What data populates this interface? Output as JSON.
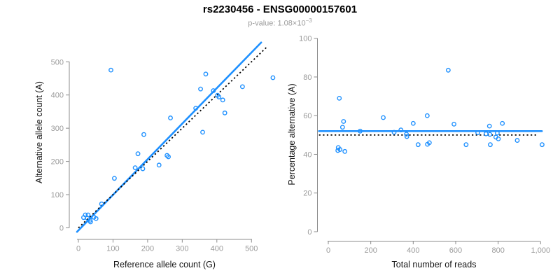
{
  "figure": {
    "title": "rs2230456 - ENSG00000157601",
    "subtitle_base": "p-value: 1.08×10",
    "subtitle_exponent": "−3",
    "colors": {
      "accent_blue": "#1e90ff",
      "dotted_black": "#000000",
      "axis_gray": "#8c8c8c",
      "tick_label_gray": "#9a9a9a",
      "text_black": "#141414"
    }
  },
  "chart_data": [
    {
      "type": "scatter",
      "panel": "left",
      "xlabel": "Reference allele count (G)",
      "ylabel": "Alternative allele count (A)",
      "xlim": [
        0,
        550
      ],
      "ylim": [
        0,
        560
      ],
      "grid": false,
      "legend": "none",
      "xticks": [
        0,
        100,
        200,
        300,
        400,
        500
      ],
      "xtick_labels": [
        "0",
        "100",
        "200",
        "300",
        "400",
        "500"
      ],
      "yticks": [
        0,
        100,
        200,
        300,
        400,
        500
      ],
      "ytick_labels": [
        "0",
        "100",
        "200",
        "300",
        "400",
        "500"
      ],
      "points": [
        [
          15,
          31
        ],
        [
          20,
          39
        ],
        [
          26,
          29
        ],
        [
          28,
          39
        ],
        [
          34,
          23
        ],
        [
          35,
          18
        ],
        [
          45,
          32
        ],
        [
          51,
          28
        ],
        [
          67,
          72
        ],
        [
          104,
          149
        ],
        [
          94,
          475
        ],
        [
          164,
          181
        ],
        [
          172,
          223
        ],
        [
          186,
          178
        ],
        [
          189,
          281
        ],
        [
          233,
          189
        ],
        [
          256,
          218
        ],
        [
          260,
          214
        ],
        [
          266,
          331
        ],
        [
          339,
          360
        ],
        [
          353,
          418
        ],
        [
          359,
          288
        ],
        [
          368,
          463
        ],
        [
          390,
          413
        ],
        [
          402,
          399
        ],
        [
          406,
          394
        ],
        [
          417,
          385
        ],
        [
          423,
          346
        ],
        [
          474,
          425
        ],
        [
          562,
          452
        ]
      ],
      "lines": [
        {
          "name": "regression",
          "style": "solid",
          "color": "#1e90ff",
          "x": [
            -4,
            528
          ],
          "y": [
            -12,
            558
          ]
        },
        {
          "name": "identity",
          "style": "dotted",
          "color": "#000000",
          "x": [
            0,
            545
          ],
          "y": [
            0,
            545
          ]
        }
      ]
    },
    {
      "type": "scatter",
      "panel": "right",
      "xlabel": "Total number of reads",
      "ylabel": "Percentage alternative (A)",
      "xlim": [
        0,
        1030
      ],
      "ylim": [
        0,
        100
      ],
      "grid": false,
      "legend": "none",
      "xticks": [
        0,
        200,
        400,
        600,
        800,
        1000
      ],
      "xtick_labels": [
        "0",
        "200",
        "400",
        "600",
        "800",
        "1,000"
      ],
      "yticks": [
        0,
        20,
        40,
        60,
        80,
        100
      ],
      "ytick_labels": [
        "0",
        "20",
        "40",
        "60",
        "80",
        "100"
      ],
      "points": [
        [
          52,
          69
        ],
        [
          72,
          57
        ],
        [
          67,
          54
        ],
        [
          45,
          42
        ],
        [
          47,
          43.5
        ],
        [
          55,
          42.5
        ],
        [
          78,
          41.5
        ],
        [
          150,
          52
        ],
        [
          259,
          59
        ],
        [
          310,
          51.4
        ],
        [
          342,
          52.6
        ],
        [
          368,
          50.4
        ],
        [
          370,
          49.2
        ],
        [
          400,
          56
        ],
        [
          423,
          45
        ],
        [
          466,
          60
        ],
        [
          467,
          45.2
        ],
        [
          476,
          46
        ],
        [
          565,
          83.5
        ],
        [
          592,
          55.6
        ],
        [
          649,
          45
        ],
        [
          704,
          51.2
        ],
        [
          743,
          50.6
        ],
        [
          759,
          54.6
        ],
        [
          761,
          50.3
        ],
        [
          763,
          45
        ],
        [
          789,
          48.9
        ],
        [
          796,
          51
        ],
        [
          801,
          48
        ],
        [
          820,
          56
        ],
        [
          890,
          47.2
        ],
        [
          1007,
          45
        ]
      ],
      "lines": [
        {
          "name": "mean-percentage",
          "style": "solid",
          "color": "#1e90ff",
          "x": [
            -44,
            1006
          ],
          "y": [
            52,
            52
          ]
        },
        {
          "name": "fifty-percent",
          "style": "dotted",
          "color": "#000000",
          "x": [
            -44,
            979
          ],
          "y": [
            50,
            50
          ]
        }
      ]
    }
  ]
}
